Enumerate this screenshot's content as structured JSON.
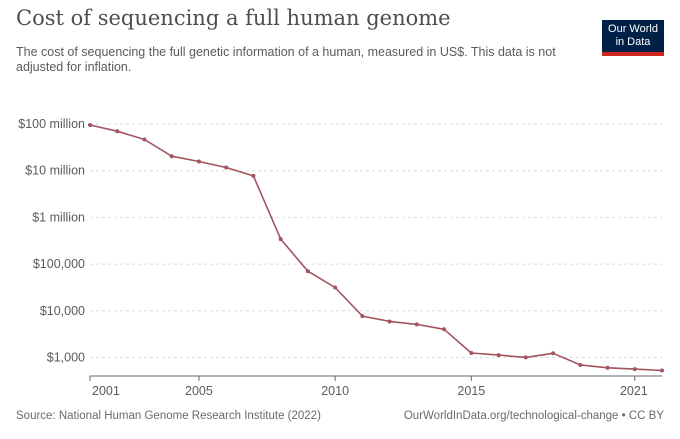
{
  "header": {
    "title": "Cost of sequencing a full human genome",
    "subtitle": "The cost of sequencing the full genetic information of a human, measured in US$. This data is not adjusted for inflation."
  },
  "logo": {
    "line1": "Our World",
    "line2": "in Data",
    "bg": "#002147",
    "accent": "#ce261e"
  },
  "footer": {
    "source": "Source: National Human Genome Research Institute (2022)",
    "credit": "OurWorldInData.org/technological-change • CC BY"
  },
  "colors": {
    "line": "#a2545f",
    "grid": "#dddddd",
    "axis": "#666666"
  },
  "chart_data": {
    "type": "line",
    "title": "Cost of sequencing a full human genome",
    "xlabel": "",
    "ylabel": "",
    "yscale": "log",
    "ylim": [
      400,
      200000000
    ],
    "xlim": [
      2001,
      2022
    ],
    "y_ticks": [
      {
        "value": 1000,
        "label": "$1,000"
      },
      {
        "value": 10000,
        "label": "$10,000"
      },
      {
        "value": 100000,
        "label": "$100,000"
      },
      {
        "value": 1000000,
        "label": "$1 million"
      },
      {
        "value": 10000000,
        "label": "$10 million"
      },
      {
        "value": 100000000,
        "label": "$100 million"
      }
    ],
    "x_ticks": [
      {
        "value": 2001,
        "label": "2001"
      },
      {
        "value": 2005,
        "label": "2005"
      },
      {
        "value": 2010,
        "label": "2010"
      },
      {
        "value": 2015,
        "label": "2015"
      },
      {
        "value": 2021,
        "label": "2021"
      }
    ],
    "series": [
      {
        "name": "Cost of sequencing a full human genome",
        "x": [
          2001,
          2002,
          2003,
          2004,
          2005,
          2006,
          2007,
          2008,
          2009,
          2010,
          2011,
          2012,
          2013,
          2014,
          2015,
          2016,
          2017,
          2018,
          2019,
          2020,
          2021,
          2022
        ],
        "y": [
          95263072,
          70175437,
          46774193,
          20442576,
          15734960,
          11734960,
          7743460,
          342502,
          70333,
          31512,
          7666,
          5901,
          5096,
          4008,
          1245,
          1121,
          1000,
          1226,
          690,
          600,
          562,
          525
        ]
      }
    ]
  }
}
